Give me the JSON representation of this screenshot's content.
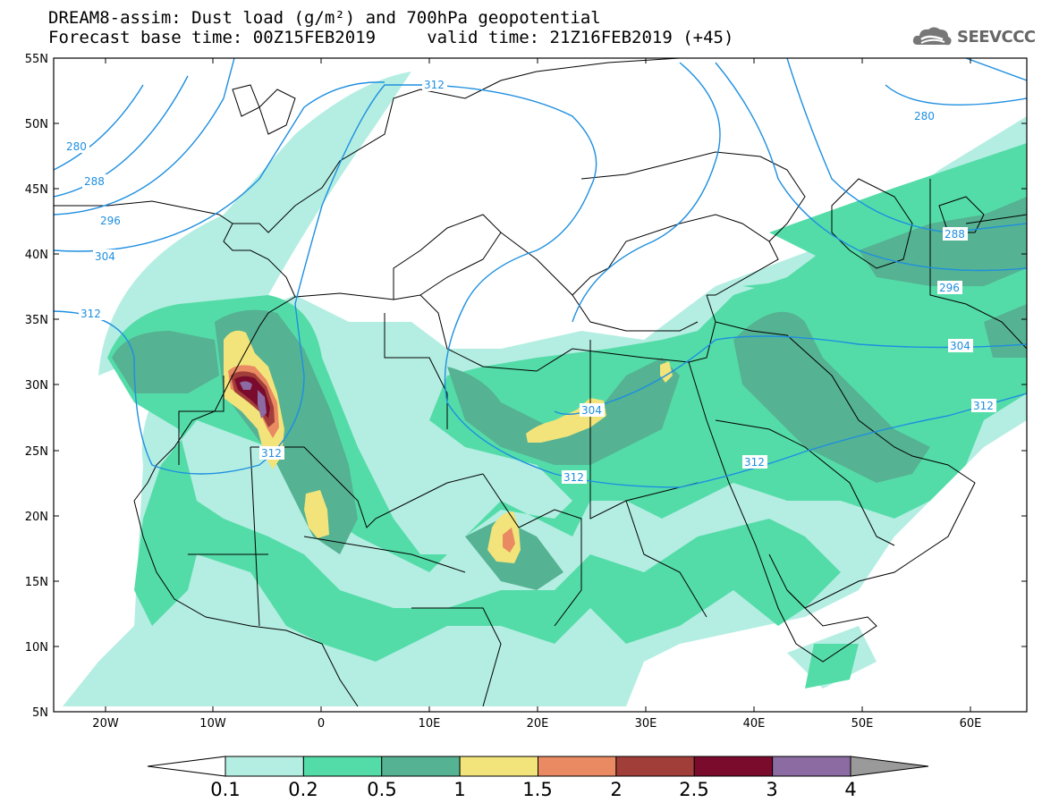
{
  "header": {
    "line1": "DREAM8-assim: Dust load (g/m²) and 700hPa geopotential",
    "line2": "Forecast base time: 00Z15FEB2019     valid time: 21Z16FEB2019 (+45)"
  },
  "logo": {
    "text": "SEEVCCC",
    "icon": "cloud-icon"
  },
  "map": {
    "lat_labels": [
      "55N",
      "50N",
      "45N",
      "40N",
      "35N",
      "30N",
      "25N",
      "20N",
      "15N",
      "10N",
      "5N"
    ],
    "lon_labels": [
      "20W",
      "10W",
      "0",
      "10E",
      "20E",
      "30E",
      "40E",
      "50E",
      "60E"
    ],
    "contour_labels": [
      "280",
      "288",
      "296",
      "304",
      "312",
      "312",
      "312",
      "304",
      "312",
      "280",
      "288",
      "296",
      "304",
      "312"
    ],
    "colors": {
      "light_teal": "#b4eee2",
      "teal": "#54dca8",
      "dark_teal": "#55b292",
      "yellow": "#f2e47a",
      "salmon": "#e98a62",
      "brown": "#a23e3a",
      "maroon": "#7a0b2c",
      "purple": "#8c6aa2",
      "contour": "#1e8fe0"
    }
  },
  "colorbar": {
    "labels": [
      "0.1",
      "0.2",
      "0.5",
      "1",
      "1.5",
      "2",
      "2.5",
      "3",
      "4"
    ],
    "colors": [
      "#b4eee2",
      "#54dca8",
      "#55b292",
      "#f2e47a",
      "#e98a62",
      "#a23e3a",
      "#7a0b2c",
      "#8c6aa2"
    ],
    "end_colors": {
      "low": "#ffffff",
      "high": "#9a9a9a"
    }
  }
}
